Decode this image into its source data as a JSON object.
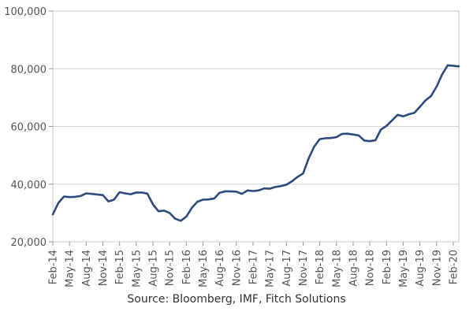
{
  "chart_data": {
    "type": "line",
    "title": "",
    "xlabel": "",
    "ylabel": "",
    "ylim": [
      20000,
      100000
    ],
    "y_ticks": [
      20000,
      40000,
      60000,
      80000,
      100000
    ],
    "y_tick_labels": [
      "20,000",
      "40,000",
      "60,000",
      "80,000",
      "100,000"
    ],
    "x_tick_labels": [
      "Feb-14",
      "May-14",
      "Aug-14",
      "Nov-14",
      "Feb-15",
      "May-15",
      "Aug-15",
      "Nov-15",
      "Feb-16",
      "May-16",
      "Aug-16",
      "Nov-16",
      "Feb-17",
      "May-17",
      "Aug-17",
      "Nov-17",
      "Feb-18",
      "May-18",
      "Aug-18",
      "Nov-18",
      "Feb-19",
      "May-19",
      "Aug-19",
      "Nov-19",
      "Feb-20"
    ],
    "x_range": [
      "2014-02",
      "2020-03"
    ],
    "grid": "horizontal",
    "series": [
      {
        "color": "#2b4a7e",
        "x": [
          "2014-02",
          "2014-03",
          "2014-04",
          "2014-05",
          "2014-06",
          "2014-07",
          "2014-08",
          "2014-09",
          "2014-10",
          "2014-11",
          "2014-12",
          "2015-01",
          "2015-02",
          "2015-03",
          "2015-04",
          "2015-05",
          "2015-06",
          "2015-07",
          "2015-08",
          "2015-09",
          "2015-10",
          "2015-11",
          "2015-12",
          "2016-01",
          "2016-02",
          "2016-03",
          "2016-04",
          "2016-05",
          "2016-06",
          "2016-07",
          "2016-08",
          "2016-09",
          "2016-10",
          "2016-11",
          "2016-12",
          "2017-01",
          "2017-02",
          "2017-03",
          "2017-04",
          "2017-05",
          "2017-06",
          "2017-07",
          "2017-08",
          "2017-09",
          "2017-10",
          "2017-11",
          "2017-12",
          "2018-01",
          "2018-02",
          "2018-03",
          "2018-04",
          "2018-05",
          "2018-06",
          "2018-07",
          "2018-08",
          "2018-09",
          "2018-10",
          "2018-11",
          "2018-12",
          "2019-01",
          "2019-02",
          "2019-03",
          "2019-04",
          "2019-05",
          "2019-06",
          "2019-07",
          "2019-08",
          "2019-09",
          "2019-10",
          "2019-11",
          "2019-12",
          "2020-01",
          "2020-02",
          "2020-03"
        ],
        "y": [
          29500,
          33500,
          35700,
          35500,
          35600,
          35900,
          36800,
          36600,
          36400,
          36200,
          34000,
          34600,
          37200,
          36800,
          36500,
          37100,
          37100,
          36700,
          33000,
          30600,
          30800,
          30000,
          28000,
          27300,
          28700,
          31800,
          33900,
          34600,
          34700,
          35000,
          37000,
          37500,
          37500,
          37400,
          36600,
          37800,
          37600,
          37800,
          38500,
          38400,
          39000,
          39300,
          39800,
          41000,
          42500,
          43700,
          48900,
          53000,
          55600,
          55900,
          56000,
          56300,
          57400,
          57500,
          57200,
          56900,
          55100,
          54900,
          55200,
          58900,
          60200,
          62100,
          64000,
          63500,
          64200,
          64700,
          66800,
          69000,
          70500,
          73800,
          78000,
          81200,
          81000,
          80800
        ]
      }
    ]
  },
  "source_text": "Source: Bloomberg, IMF, Fitch Solutions"
}
